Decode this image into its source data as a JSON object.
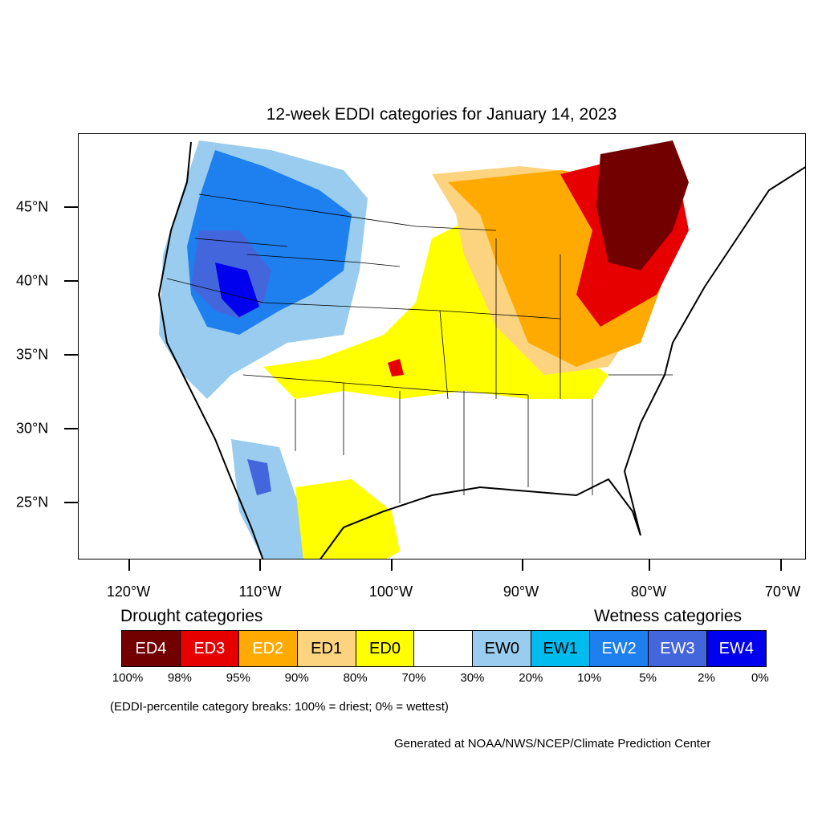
{
  "title": "12-week EDDI categories for January 14, 2023",
  "lat_labels": [
    "45°N",
    "40°N",
    "35°N",
    "30°N",
    "25°N"
  ],
  "lon_labels": [
    "120°W",
    "110°W",
    "100°W",
    "90°W",
    "80°W",
    "70°W"
  ],
  "drought_heading": "Drought categories",
  "wetness_heading": "Wetness categories",
  "legend": [
    {
      "label": "ED4",
      "color": "#730000",
      "text_color": "#ffffff"
    },
    {
      "label": "ED3",
      "color": "#e60000",
      "text_color": "#ffffff"
    },
    {
      "label": "ED2",
      "color": "#ffaa00",
      "text_color": "#ffffff"
    },
    {
      "label": "ED1",
      "color": "#fcd37f",
      "text_color": "#000000"
    },
    {
      "label": "ED0",
      "color": "#ffff00",
      "text_color": "#000000"
    },
    {
      "label": "",
      "color": "#ffffff",
      "text_color": "#000000"
    },
    {
      "label": "EW0",
      "color": "#99ccee",
      "text_color": "#000000"
    },
    {
      "label": "EW1",
      "color": "#00bbee",
      "text_color": "#000000"
    },
    {
      "label": "EW2",
      "color": "#1e7fee",
      "text_color": "#ffffff"
    },
    {
      "label": "EW3",
      "color": "#4466dd",
      "text_color": "#ffffff"
    },
    {
      "label": "EW4",
      "color": "#0000ee",
      "text_color": "#ffffff"
    }
  ],
  "percentiles": [
    "100%",
    "98%",
    "95%",
    "90%",
    "80%",
    "70%",
    "30%",
    "20%",
    "10%",
    "5%",
    "2%",
    "0%"
  ],
  "note": "(EDDI-percentile category breaks: 100% = driest; 0% = wettest)",
  "credit": "Generated at NOAA/NWS/NCEP/Climate Prediction Center"
}
